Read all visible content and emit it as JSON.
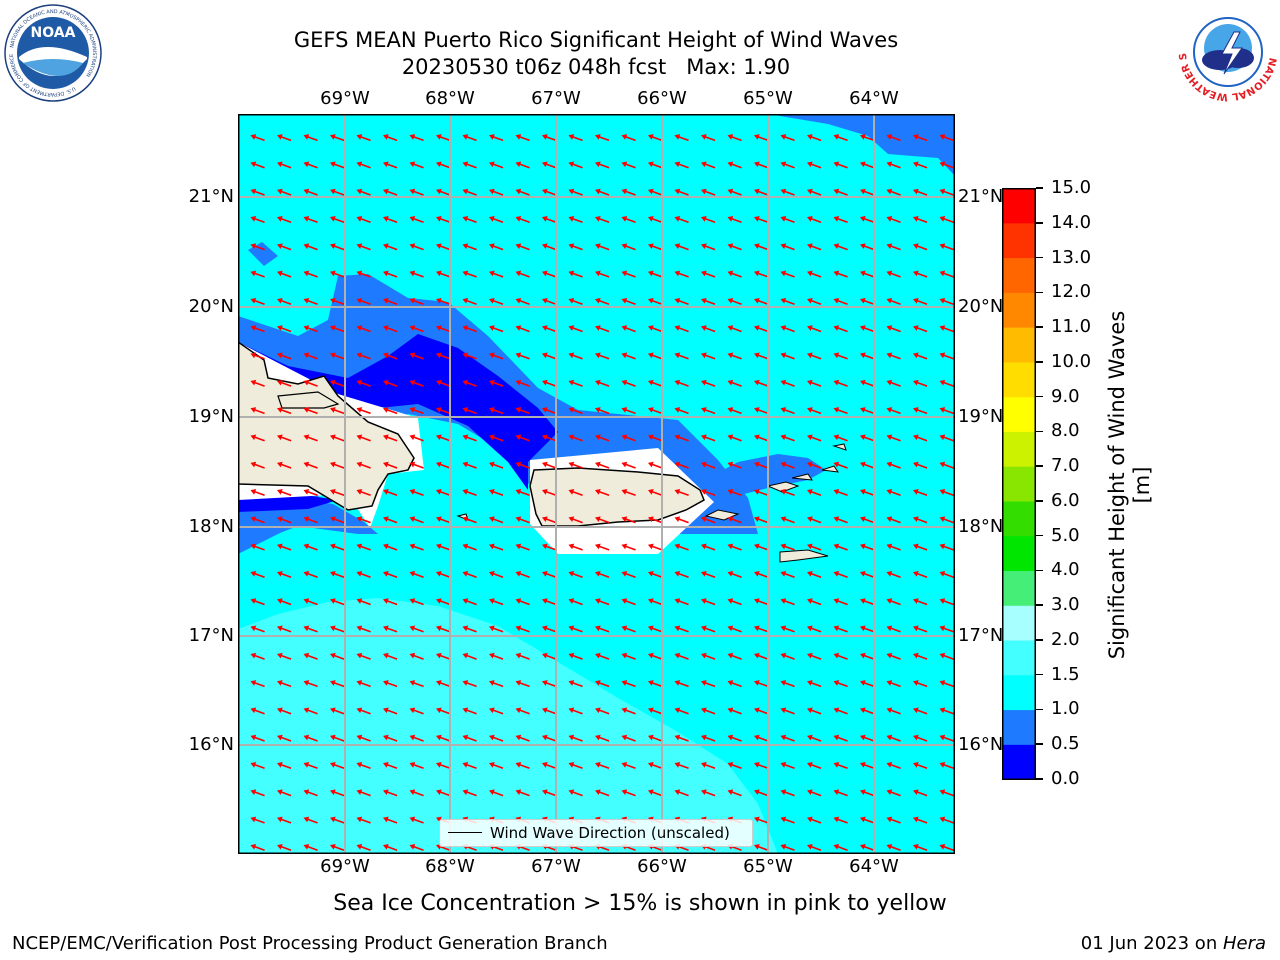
{
  "header": {
    "title_line1": "GEFS MEAN Puerto Rico Significant Height of Wind Waves",
    "title_line2": "20230530 t06z 048h fcst   Max: 1.90"
  },
  "logos": {
    "noaa_text": "NOAA",
    "noaa_ring_text": "NATIONAL OCEANIC AND ATMOSPHERIC ADMINISTRATION",
    "noaa_ring_bottom": "U.S. DEPARTMENT OF COMMERCE",
    "nws_ring_text": "NATIONAL WEATHER SERVICE"
  },
  "map": {
    "lon_labels": [
      "69°W",
      "68°W",
      "67°W",
      "66°W",
      "65°W",
      "64°W"
    ],
    "lat_labels": [
      "21°N",
      "20°N",
      "19°N",
      "18°N",
      "17°N",
      "16°N"
    ],
    "legend_label": "Wind Wave Direction (unscaled)",
    "land_color": "#efecdc",
    "vector_color": "#ff0000"
  },
  "colorbar": {
    "label": "Significant Height of Wind Waves [m]",
    "ticks": [
      "0.0",
      "0.5",
      "1.0",
      "1.5",
      "2.0",
      "3.0",
      "4.0",
      "5.0",
      "6.0",
      "7.0",
      "8.0",
      "9.0",
      "10.0",
      "11.0",
      "12.0",
      "13.0",
      "14.0",
      "15.0"
    ],
    "colors": [
      "#0000ff",
      "#1e7bff",
      "#00ffff",
      "#44ffff",
      "#a8ffff",
      "#44ee77",
      "#00e600",
      "#33dd00",
      "#88e600",
      "#ccf200",
      "#ffff00",
      "#ffdd00",
      "#ffbb00",
      "#ff8800",
      "#ff6600",
      "#ff3300",
      "#ff0000"
    ]
  },
  "footer": {
    "note": "Sea Ice Concentration > 15% is shown in pink to yellow",
    "left": "NCEP/EMC/Verification Post Processing Product Generation Branch",
    "right_date": "01 Jun 2023 on ",
    "right_host": "Hera"
  }
}
